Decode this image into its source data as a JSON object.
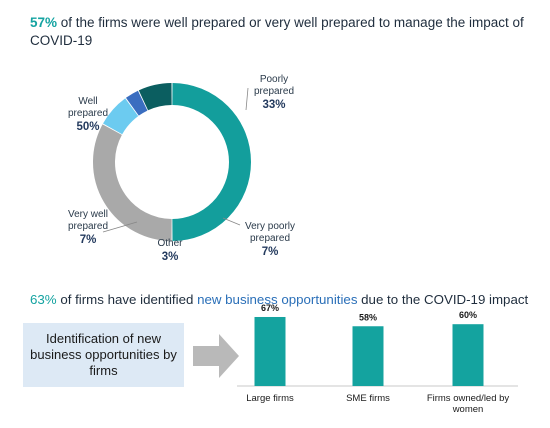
{
  "headline": {
    "highlight": "57%",
    "text": " of the firms were well prepared or very well prepared to manage the impact of COVID-19"
  },
  "opportunities": {
    "pct": "63%",
    "text_before": " of firms have identified ",
    "highlight": "new business opportunities",
    "text_after": " due to the COVID-19 impact"
  },
  "identification_box": {
    "text": "Identification of new business opportunities by firms"
  },
  "chart_data": [
    {
      "type": "pie",
      "variant": "donut",
      "slices": [
        {
          "label": "Well prepared",
          "value": 50,
          "display": "50%",
          "color": "#139e9c"
        },
        {
          "label": "Poorly prepared",
          "value": 33,
          "display": "33%",
          "color": "#a9a9a9"
        },
        {
          "label": "Very poorly prepared",
          "value": 7,
          "display": "7%",
          "color": "#6ccbf0"
        },
        {
          "label": "Other",
          "value": 3,
          "display": "3%",
          "color": "#3a6ec0"
        },
        {
          "label": "Very well prepared",
          "value": 7,
          "display": "7%",
          "color": "#0b5e60"
        }
      ]
    },
    {
      "type": "bar",
      "categories": [
        "Large firms",
        "SME firms",
        "Firms owned/led by women"
      ],
      "values": [
        67,
        58,
        60
      ],
      "labels": [
        "67%",
        "58%",
        "60%"
      ],
      "color": "#14a39f"
    }
  ]
}
